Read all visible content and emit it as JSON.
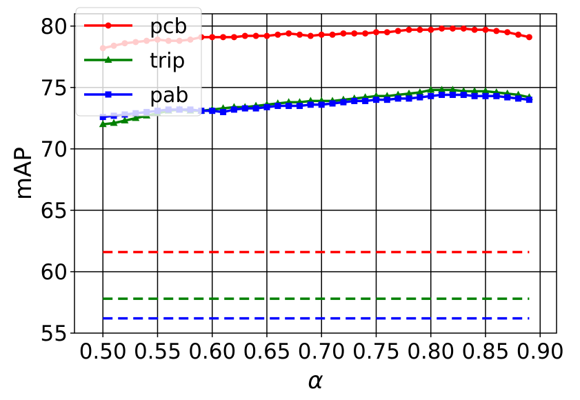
{
  "chart_data": {
    "type": "line",
    "xlabel": "α",
    "ylabel": "mAP",
    "xlim": [
      0.474,
      0.915
    ],
    "ylim": [
      55,
      81
    ],
    "grid": true,
    "legend_position": "top-left",
    "xticks": [
      "0.50",
      "0.55",
      "0.60",
      "0.65",
      "0.70",
      "0.75",
      "0.80",
      "0.85",
      "0.90"
    ],
    "xtick_values": [
      0.5,
      0.55,
      0.6,
      0.65,
      0.7,
      0.75,
      0.8,
      0.85,
      0.9
    ],
    "yticks": [
      "55",
      "60",
      "65",
      "70",
      "75",
      "80"
    ],
    "ytick_values": [
      55,
      60,
      65,
      70,
      75,
      80
    ],
    "x": [
      0.5,
      0.51,
      0.52,
      0.53,
      0.54,
      0.55,
      0.56,
      0.57,
      0.58,
      0.59,
      0.6,
      0.61,
      0.62,
      0.63,
      0.64,
      0.65,
      0.66,
      0.67,
      0.68,
      0.69,
      0.7,
      0.71,
      0.72,
      0.73,
      0.74,
      0.75,
      0.76,
      0.77,
      0.78,
      0.79,
      0.8,
      0.81,
      0.82,
      0.83,
      0.84,
      0.85,
      0.86,
      0.87,
      0.88,
      0.89
    ],
    "series": [
      {
        "name": "pcb",
        "color": "#ff0000",
        "marker": "circle",
        "values": [
          78.2,
          78.4,
          78.6,
          78.7,
          78.8,
          78.9,
          78.8,
          78.8,
          78.9,
          79.1,
          79.1,
          79.1,
          79.1,
          79.2,
          79.2,
          79.2,
          79.3,
          79.4,
          79.3,
          79.2,
          79.3,
          79.3,
          79.4,
          79.4,
          79.4,
          79.5,
          79.5,
          79.6,
          79.7,
          79.7,
          79.7,
          79.8,
          79.8,
          79.8,
          79.7,
          79.7,
          79.6,
          79.5,
          79.3,
          79.1
        ],
        "baseline": 61.6
      },
      {
        "name": "trip",
        "color": "#008000",
        "marker": "triangle",
        "values": [
          72.0,
          72.1,
          72.3,
          72.5,
          72.7,
          72.9,
          73.1,
          73.2,
          73.1,
          73.1,
          73.2,
          73.3,
          73.4,
          73.4,
          73.5,
          73.6,
          73.7,
          73.8,
          73.8,
          73.9,
          73.9,
          73.9,
          74.0,
          74.1,
          74.2,
          74.3,
          74.3,
          74.4,
          74.5,
          74.6,
          74.8,
          74.8,
          74.8,
          74.7,
          74.7,
          74.7,
          74.6,
          74.5,
          74.4,
          74.2
        ],
        "baseline": 57.8
      },
      {
        "name": "pab",
        "color": "#0000ff",
        "marker": "square",
        "values": [
          72.6,
          72.7,
          72.8,
          72.9,
          73.0,
          73.1,
          73.2,
          73.2,
          73.2,
          73.1,
          73.1,
          73.0,
          73.2,
          73.3,
          73.3,
          73.4,
          73.5,
          73.5,
          73.5,
          73.6,
          73.6,
          73.7,
          73.8,
          73.9,
          73.9,
          74.0,
          74.0,
          74.1,
          74.1,
          74.2,
          74.3,
          74.4,
          74.4,
          74.4,
          74.3,
          74.3,
          74.3,
          74.2,
          74.1,
          74.0
        ],
        "baseline": 56.2
      }
    ]
  }
}
